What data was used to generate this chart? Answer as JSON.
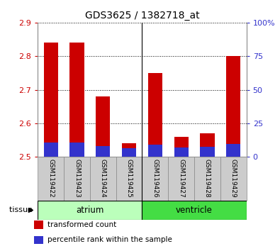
{
  "title": "GDS3625 / 1382718_at",
  "samples": [
    "GSM119422",
    "GSM119423",
    "GSM119424",
    "GSM119425",
    "GSM119426",
    "GSM119427",
    "GSM119428",
    "GSM119429"
  ],
  "transformed_counts": [
    2.84,
    2.84,
    2.68,
    2.54,
    2.75,
    2.56,
    2.57,
    2.8
  ],
  "percentile_ranks": [
    10.5,
    10.5,
    8.0,
    6.5,
    9.0,
    7.0,
    7.5,
    9.5
  ],
  "ylim_left": [
    2.5,
    2.9
  ],
  "ylim_right": [
    0,
    100
  ],
  "yticks_left": [
    2.5,
    2.6,
    2.7,
    2.8,
    2.9
  ],
  "yticks_right": [
    0,
    25,
    50,
    75,
    100
  ],
  "ytick_labels_right": [
    "0",
    "25",
    "50",
    "75",
    "100%"
  ],
  "bar_bottom": 2.5,
  "blue_bar_scale": 0.4,
  "red_color": "#cc0000",
  "blue_color": "#3333cc",
  "tissue_groups": [
    {
      "label": "atrium",
      "start": 0,
      "end": 4,
      "color": "#bbffbb"
    },
    {
      "label": "ventricle",
      "start": 4,
      "end": 8,
      "color": "#44dd44"
    }
  ],
  "tissue_label": "tissue",
  "tissue_label_color": "#000000",
  "tick_label_color_left": "#cc0000",
  "tick_label_color_right": "#3333cc",
  "sample_bg": "#cccccc",
  "sample_border": "#888888",
  "legend_items": [
    {
      "label": "transformed count",
      "color": "#cc0000"
    },
    {
      "label": "percentile rank within the sample",
      "color": "#3333cc"
    }
  ],
  "bar_width": 0.55
}
